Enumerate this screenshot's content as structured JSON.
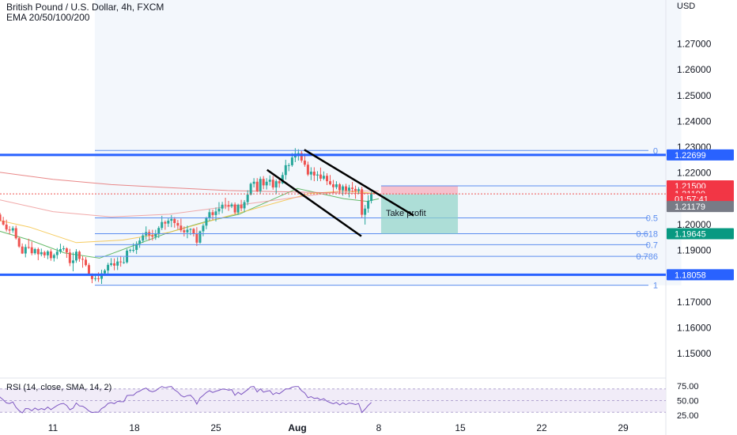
{
  "header": {
    "symbol_title": "British Pound / U.S. Dollar, 4h, FXCM",
    "indicator_title": "EMA 20/50/100/200",
    "currency": "USD"
  },
  "rsi": {
    "label": "RSI (14, close, SMA, 14, 2)",
    "ticks": [
      "75.00",
      "50.00",
      "25.00"
    ],
    "tick_values": [
      75,
      50,
      25
    ],
    "range": [
      25,
      75
    ]
  },
  "colors": {
    "horizontal_line": "#2962ff",
    "fib_line": "#5b8def",
    "channel": "#000000",
    "stop_zone": "#f7a8b8",
    "target_zone": "#8fd3c7",
    "bull": "#26a69a",
    "bear": "#ef5350",
    "ema20": "#4caf50",
    "ema50": "#f5c242",
    "ema100": "#ef9a9a",
    "ema200": "#e57373",
    "rsi_line": "#7e57c2",
    "rsi_band": "#ede7f6"
  },
  "chart_data": {
    "type": "candlestick",
    "y_axis": {
      "range": [
        1.143,
        1.287
      ],
      "ticks": [
        "1.27000",
        "1.26000",
        "1.25000",
        "1.24000",
        "1.23000",
        "1.22000",
        "1.20000",
        "1.19000",
        "1.17000",
        "1.16000",
        "1.15000"
      ],
      "tick_values": [
        1.27,
        1.26,
        1.25,
        1.24,
        1.23,
        1.22,
        1.2,
        1.19,
        1.17,
        1.16,
        1.15
      ]
    },
    "x_axis": {
      "ticks": [
        "11",
        "18",
        "25",
        "Aug",
        "8",
        "15",
        "22",
        "29"
      ],
      "tick_days": [
        11,
        18,
        25,
        32,
        39,
        46,
        53,
        60
      ]
    },
    "price_badges": [
      {
        "label": "1.22699",
        "value": 1.22699,
        "color": "#2962ff"
      },
      {
        "label": "1.21500",
        "value": 1.215,
        "color": "#f23645"
      },
      {
        "label": "1.21190",
        "value": 1.2119,
        "color": "#f23645"
      },
      {
        "label": "01:57:41",
        "value": 1.21,
        "color": "#f23645"
      },
      {
        "label": "1.21179",
        "value": 1.207,
        "color": "#787b86"
      },
      {
        "label": "1.19645",
        "value": 1.19645,
        "color": "#089981"
      },
      {
        "label": "1.18058",
        "value": 1.18058,
        "color": "#2962ff"
      }
    ],
    "horizontal_lines": [
      1.22699,
      1.18058
    ],
    "fib_levels": [
      {
        "label": "0",
        "value": 1.2287
      },
      {
        "label": "0.5",
        "value": 1.2026
      },
      {
        "label": "0.618",
        "value": 1.19645
      },
      {
        "label": "0.7",
        "value": 1.1922
      },
      {
        "label": "0.786",
        "value": 1.1877
      },
      {
        "label": "1",
        "value": 1.1765
      }
    ],
    "trade": {
      "entry": 1.2117,
      "stop": 1.215,
      "target": 1.19645,
      "label": "Take profit"
    },
    "channel": {
      "upper": [
        [
          32.6,
          1.229
        ],
        [
          42.0,
          1.2035
        ]
      ],
      "lower": [
        [
          29.4,
          1.2212
        ],
        [
          37.5,
          1.1955
        ]
      ]
    },
    "ema": {
      "ema20": [
        [
          1,
          1.198
        ],
        [
          3,
          1.196
        ],
        [
          6,
          1.198
        ],
        [
          9,
          1.194
        ],
        [
          12,
          1.189
        ],
        [
          15,
          1.187
        ],
        [
          18,
          1.192
        ],
        [
          21,
          1.197
        ],
        [
          24,
          1.201
        ],
        [
          27,
          1.204
        ],
        [
          30,
          1.21
        ],
        [
          32,
          1.214
        ],
        [
          34,
          1.212
        ],
        [
          36,
          1.21
        ],
        [
          38,
          1.209
        ],
        [
          39,
          1.21
        ]
      ],
      "ema50": [
        [
          1,
          1.207
        ],
        [
          5,
          1.203
        ],
        [
          9,
          1.199
        ],
        [
          13,
          1.193
        ],
        [
          17,
          1.194
        ],
        [
          21,
          1.197
        ],
        [
          25,
          1.202
        ],
        [
          29,
          1.207
        ],
        [
          33,
          1.212
        ],
        [
          36,
          1.213
        ],
        [
          39,
          1.212
        ]
      ],
      "ema100": [
        [
          1,
          1.213
        ],
        [
          6,
          1.21
        ],
        [
          11,
          1.205
        ],
        [
          16,
          1.203
        ],
        [
          21,
          1.204
        ],
        [
          26,
          1.207
        ],
        [
          31,
          1.21
        ],
        [
          36,
          1.213
        ],
        [
          39,
          1.213
        ]
      ],
      "ema200": [
        [
          1,
          1.2235
        ],
        [
          6,
          1.2205
        ],
        [
          11,
          1.2175
        ],
        [
          16,
          1.2155
        ],
        [
          21,
          1.2143
        ],
        [
          26,
          1.2132
        ],
        [
          31,
          1.2127
        ],
        [
          36,
          1.2122
        ],
        [
          39,
          1.212
        ]
      ]
    },
    "candles": [
      [
        1.0,
        1.1952,
        1.1957,
        1.1911,
        1.1919
      ],
      [
        1.27,
        1.1919,
        1.1965,
        1.1909,
        1.1961
      ],
      [
        1.55,
        1.1961,
        1.1981,
        1.1942,
        1.1949
      ],
      [
        1.82,
        1.1949,
        1.1982,
        1.1927,
        1.1973
      ],
      [
        2.09,
        1.1973,
        1.2013,
        1.197,
        1.2008
      ],
      [
        2.36,
        1.2008,
        1.2013,
        1.1977,
        1.1991
      ],
      [
        2.64,
        1.1991,
        1.2009,
        1.1968,
        1.2005
      ],
      [
        2.91,
        1.2005,
        1.2037,
        1.1998,
        1.2025
      ],
      [
        3.18,
        1.2025,
        1.2036,
        1.1994,
        1.2
      ],
      [
        3.45,
        1.2,
        1.2012,
        1.1972,
        1.1982
      ],
      [
        3.73,
        1.1982,
        1.2009,
        1.197,
        1.198
      ],
      [
        4.0,
        1.198,
        1.2011,
        1.1951,
        1.2006
      ],
      [
        4.27,
        1.2006,
        1.202,
        1.1972,
        1.2013
      ],
      [
        4.55,
        1.2013,
        1.2023,
        1.1991,
        1.2018
      ],
      [
        4.82,
        1.2018,
        1.2054,
        1.2016,
        1.2041
      ],
      [
        5.09,
        1.2041,
        1.2068,
        1.2022,
        1.204
      ],
      [
        5.36,
        1.204,
        1.2045,
        1.2011,
        1.2027
      ],
      [
        5.64,
        1.2027,
        1.2054,
        1.2013,
        1.2046
      ],
      [
        5.91,
        1.2046,
        1.2061,
        1.2039,
        1.2056
      ],
      [
        6.18,
        1.2056,
        1.2061,
        1.2036,
        1.2039
      ],
      [
        6.45,
        1.2039,
        1.2046,
        1.2012,
        1.2015
      ],
      [
        6.73,
        1.2015,
        1.203,
        1.1996,
        1.2
      ],
      [
        7.0,
        1.2,
        1.2019,
        1.1973,
        1.1981
      ],
      [
        7.27,
        1.1981,
        1.1994,
        1.1963,
        1.1977
      ],
      [
        7.55,
        1.1977,
        1.1994,
        1.1968,
        1.1986
      ],
      [
        7.82,
        1.1986,
        1.1996,
        1.1942,
        1.1947
      ],
      [
        8.09,
        1.1947,
        1.1953,
        1.191,
        1.1915
      ],
      [
        8.36,
        1.1915,
        1.1927,
        1.1886,
        1.1888
      ],
      [
        8.64,
        1.1888,
        1.1924,
        1.1873,
        1.1913
      ],
      [
        8.91,
        1.1913,
        1.1945,
        1.1906,
        1.1912
      ],
      [
        9.18,
        1.1912,
        1.1934,
        1.1881,
        1.1889
      ],
      [
        9.45,
        1.1889,
        1.191,
        1.1883,
        1.1905
      ],
      [
        9.73,
        1.1905,
        1.1911,
        1.1862,
        1.1885
      ],
      [
        10.0,
        1.1885,
        1.1907,
        1.1877,
        1.1893
      ],
      [
        10.27,
        1.1893,
        1.1899,
        1.1871,
        1.1881
      ],
      [
        10.55,
        1.1881,
        1.1901,
        1.1866,
        1.1896
      ],
      [
        10.82,
        1.1896,
        1.1905,
        1.186,
        1.187
      ],
      [
        11.09,
        1.187,
        1.1888,
        1.1857,
        1.1882
      ],
      [
        11.36,
        1.1882,
        1.1909,
        1.1867,
        1.1895
      ],
      [
        11.64,
        1.1895,
        1.1926,
        1.1887,
        1.1905
      ],
      [
        11.91,
        1.1905,
        1.1918,
        1.1898,
        1.1908
      ],
      [
        12.18,
        1.1908,
        1.1912,
        1.1871,
        1.1892
      ],
      [
        12.45,
        1.1892,
        1.1906,
        1.1839,
        1.1851
      ],
      [
        12.73,
        1.1851,
        1.1893,
        1.1819,
        1.1861
      ],
      [
        13.0,
        1.1861,
        1.1905,
        1.1852,
        1.1895
      ],
      [
        13.27,
        1.1895,
        1.19,
        1.1856,
        1.1867
      ],
      [
        13.55,
        1.1867,
        1.1878,
        1.1833,
        1.1864
      ],
      [
        13.82,
        1.1864,
        1.1874,
        1.1838,
        1.1843
      ],
      [
        14.09,
        1.1843,
        1.1851,
        1.1806,
        1.181
      ],
      [
        14.36,
        1.181,
        1.1811,
        1.1773,
        1.1789
      ],
      [
        14.64,
        1.1789,
        1.1807,
        1.1781,
        1.1792
      ],
      [
        14.91,
        1.1792,
        1.1815,
        1.1778,
        1.179
      ],
      [
        15.18,
        1.179,
        1.1825,
        1.177,
        1.1811
      ],
      [
        15.45,
        1.1811,
        1.1828,
        1.1806,
        1.1822
      ],
      [
        15.73,
        1.1822,
        1.1852,
        1.181,
        1.1844
      ],
      [
        16.0,
        1.1844,
        1.187,
        1.1838,
        1.185
      ],
      [
        16.27,
        1.185,
        1.1869,
        1.1823,
        1.1841
      ],
      [
        16.55,
        1.1841,
        1.1873,
        1.1824,
        1.1857
      ],
      [
        16.82,
        1.1857,
        1.1878,
        1.1837,
        1.1854
      ],
      [
        17.09,
        1.1854,
        1.1874,
        1.1848,
        1.1854
      ],
      [
        17.36,
        1.1854,
        1.1906,
        1.1849,
        1.1899
      ],
      [
        17.64,
        1.1899,
        1.1907,
        1.1891,
        1.1902
      ],
      [
        17.91,
        1.1902,
        1.1928,
        1.1892,
        1.1902
      ],
      [
        18.18,
        1.1902,
        1.1935,
        1.1886,
        1.1925
      ],
      [
        18.45,
        1.1925,
        1.1949,
        1.191,
        1.1938
      ],
      [
        18.73,
        1.1938,
        1.1968,
        1.1929,
        1.1958
      ],
      [
        19.0,
        1.1958,
        1.1993,
        1.1941,
        1.1971
      ],
      [
        19.27,
        1.1971,
        1.1981,
        1.1938,
        1.1958
      ],
      [
        19.55,
        1.1958,
        1.198,
        1.1938,
        1.1953
      ],
      [
        19.82,
        1.1953,
        1.198,
        1.1941,
        1.1963
      ],
      [
        20.09,
        1.1963,
        1.1994,
        1.1948,
        1.1987
      ],
      [
        20.36,
        1.1987,
        1.2034,
        1.1979,
        1.201
      ],
      [
        20.64,
        1.201,
        1.2016,
        1.198,
        1.2004
      ],
      [
        20.91,
        1.2004,
        1.2024,
        1.1991,
        1.2015
      ],
      [
        21.18,
        1.2015,
        1.2037,
        1.199,
        1.2022
      ],
      [
        21.45,
        1.2022,
        1.2029,
        1.1988,
        1.2006
      ],
      [
        21.73,
        1.2006,
        1.2018,
        1.1982,
        1.1996
      ],
      [
        22.0,
        1.1996,
        1.2023,
        1.197,
        1.1978
      ],
      [
        22.27,
        1.1978,
        1.1993,
        1.1954,
        1.197
      ],
      [
        22.55,
        1.197,
        1.1996,
        1.1947,
        1.198
      ],
      [
        22.82,
        1.198,
        1.1986,
        1.1959,
        1.1983
      ],
      [
        23.09,
        1.1983,
        1.1987,
        1.1954,
        1.1966
      ],
      [
        23.36,
        1.1966,
        1.199,
        1.1917,
        1.193
      ],
      [
        23.64,
        1.193,
        1.1977,
        1.1926,
        1.1974
      ],
      [
        23.91,
        1.1974,
        1.2004,
        1.1955,
        1.1996
      ],
      [
        24.18,
        1.1996,
        1.203,
        1.1982,
        1.2026
      ],
      [
        24.45,
        1.2026,
        1.2059,
        1.2014,
        1.2048
      ],
      [
        24.73,
        1.2048,
        1.2058,
        1.2018,
        1.2037
      ],
      [
        25.0,
        1.2037,
        1.2066,
        1.2012,
        1.2051
      ],
      [
        25.27,
        1.2051,
        1.2087,
        1.2039,
        1.2062
      ],
      [
        25.55,
        1.2062,
        1.2088,
        1.2044,
        1.2077
      ],
      [
        25.82,
        1.2077,
        1.2104,
        1.206,
        1.2076
      ],
      [
        26.09,
        1.2076,
        1.2092,
        1.2053,
        1.2071
      ],
      [
        26.36,
        1.2071,
        1.2085,
        1.2064,
        1.2078
      ],
      [
        26.64,
        1.2078,
        1.2086,
        1.2039,
        1.2047
      ],
      [
        26.91,
        1.2047,
        1.2081,
        1.2038,
        1.2076
      ],
      [
        27.18,
        1.2076,
        1.2096,
        1.2052,
        1.2063
      ],
      [
        27.45,
        1.2063,
        1.2095,
        1.2048,
        1.2087
      ],
      [
        27.73,
        1.2087,
        1.2133,
        1.2075,
        1.2116
      ],
      [
        28.0,
        1.2116,
        1.2163,
        1.2113,
        1.2158
      ],
      [
        28.27,
        1.2158,
        1.218,
        1.2144,
        1.2166
      ],
      [
        28.55,
        1.2166,
        1.218,
        1.2125,
        1.213
      ],
      [
        28.82,
        1.213,
        1.2186,
        1.2118,
        1.2177
      ],
      [
        29.09,
        1.2177,
        1.2188,
        1.2137,
        1.2152
      ],
      [
        29.36,
        1.2152,
        1.218,
        1.2136,
        1.2166
      ],
      [
        29.64,
        1.2166,
        1.2191,
        1.2151,
        1.2174
      ],
      [
        29.91,
        1.2174,
        1.2188,
        1.2135,
        1.2144
      ],
      [
        30.18,
        1.2144,
        1.2175,
        1.2119,
        1.2168
      ],
      [
        30.45,
        1.2168,
        1.218,
        1.2143,
        1.216
      ],
      [
        30.73,
        1.216,
        1.2203,
        1.2157,
        1.2192
      ],
      [
        31.0,
        1.2192,
        1.2251,
        1.2174,
        1.223
      ],
      [
        31.27,
        1.223,
        1.2238,
        1.2207,
        1.223
      ],
      [
        31.55,
        1.223,
        1.2277,
        1.2224,
        1.226
      ],
      [
        31.82,
        1.226,
        1.2296,
        1.2242,
        1.2275
      ],
      [
        32.09,
        1.2275,
        1.2292,
        1.2248,
        1.2277
      ],
      [
        32.36,
        1.2277,
        1.2286,
        1.224,
        1.2248
      ],
      [
        32.64,
        1.2248,
        1.2276,
        1.2224,
        1.2232
      ],
      [
        32.91,
        1.2232,
        1.2244,
        1.2188,
        1.2194
      ],
      [
        33.18,
        1.2194,
        1.2222,
        1.2172,
        1.2205
      ],
      [
        33.45,
        1.2205,
        1.2222,
        1.2168,
        1.219
      ],
      [
        33.73,
        1.219,
        1.2207,
        1.2169,
        1.2194
      ],
      [
        34.0,
        1.2194,
        1.2221,
        1.2168,
        1.2178
      ],
      [
        34.27,
        1.2178,
        1.2206,
        1.2172,
        1.2189
      ],
      [
        34.55,
        1.2189,
        1.2199,
        1.2153,
        1.2168
      ],
      [
        34.82,
        1.2168,
        1.2192,
        1.2152,
        1.2156
      ],
      [
        35.09,
        1.2156,
        1.2173,
        1.2123,
        1.2145
      ],
      [
        35.36,
        1.2145,
        1.2168,
        1.2137,
        1.2156
      ],
      [
        35.64,
        1.2156,
        1.2161,
        1.2121,
        1.2133
      ],
      [
        35.91,
        1.2133,
        1.2155,
        1.2112,
        1.2148
      ],
      [
        36.18,
        1.2148,
        1.2158,
        1.212,
        1.2132
      ],
      [
        36.45,
        1.2132,
        1.2154,
        1.2105,
        1.2143
      ],
      [
        36.73,
        1.2143,
        1.2165,
        1.2125,
        1.2138
      ],
      [
        37.0,
        1.2138,
        1.2151,
        1.21,
        1.2131
      ],
      [
        37.27,
        1.2131,
        1.2145,
        1.2118,
        1.2137
      ],
      [
        37.55,
        1.2137,
        1.2147,
        1.2025,
        1.2038
      ],
      [
        37.82,
        1.2038,
        1.2076,
        1.2,
        1.2062
      ],
      [
        38.09,
        1.2062,
        1.2114,
        1.2046,
        1.2092
      ],
      [
        38.36,
        1.2092,
        1.2127,
        1.2082,
        1.2119
      ]
    ]
  }
}
